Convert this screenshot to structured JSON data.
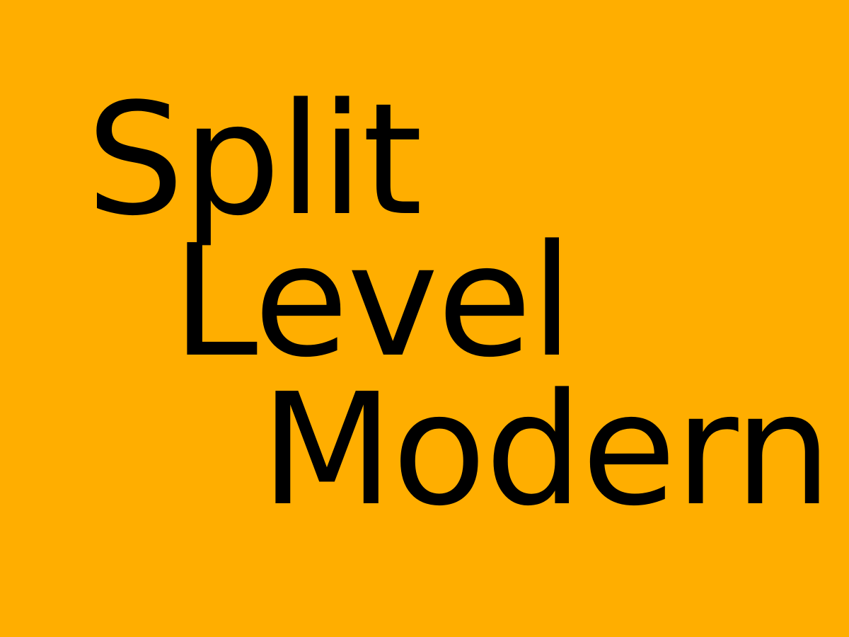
{
  "colors": {
    "background": "#FFAE00",
    "text": "#000000"
  },
  "title": {
    "line_1": "Split",
    "line_2": "Level",
    "line_3": "Modern"
  }
}
